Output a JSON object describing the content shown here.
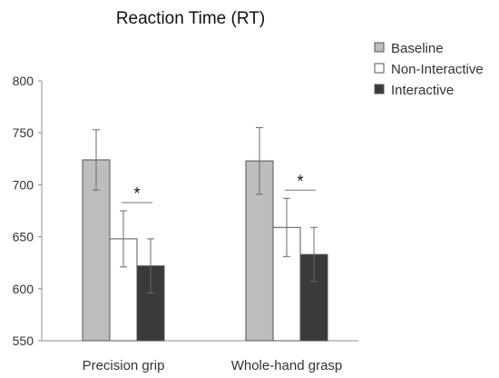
{
  "chart_data": {
    "type": "bar",
    "title": "Reaction Time (RT)",
    "xlabel": "",
    "ylabel": "",
    "ylim": [
      550,
      800
    ],
    "yticks": [
      550,
      600,
      650,
      700,
      750,
      800
    ],
    "categories": [
      "Precision grip",
      "Whole-hand grasp"
    ],
    "series": [
      {
        "name": "Baseline",
        "values": [
          724,
          723
        ],
        "errors": [
          29,
          32
        ],
        "color": "#bdbdbd"
      },
      {
        "name": "Non-Interactive",
        "values": [
          648,
          659
        ],
        "errors": [
          27,
          28
        ],
        "color": "#ffffff"
      },
      {
        "name": "Interactive",
        "values": [
          622,
          633
        ],
        "errors": [
          26,
          26
        ],
        "color": "#3a3a3a"
      }
    ],
    "significance": [
      {
        "category": "Precision grip",
        "between": [
          "Non-Interactive",
          "Interactive"
        ],
        "marker": "*"
      },
      {
        "category": "Whole-hand grasp",
        "between": [
          "Non-Interactive",
          "Interactive"
        ],
        "marker": "*"
      }
    ],
    "grid": false,
    "legend_position": "top-right"
  }
}
